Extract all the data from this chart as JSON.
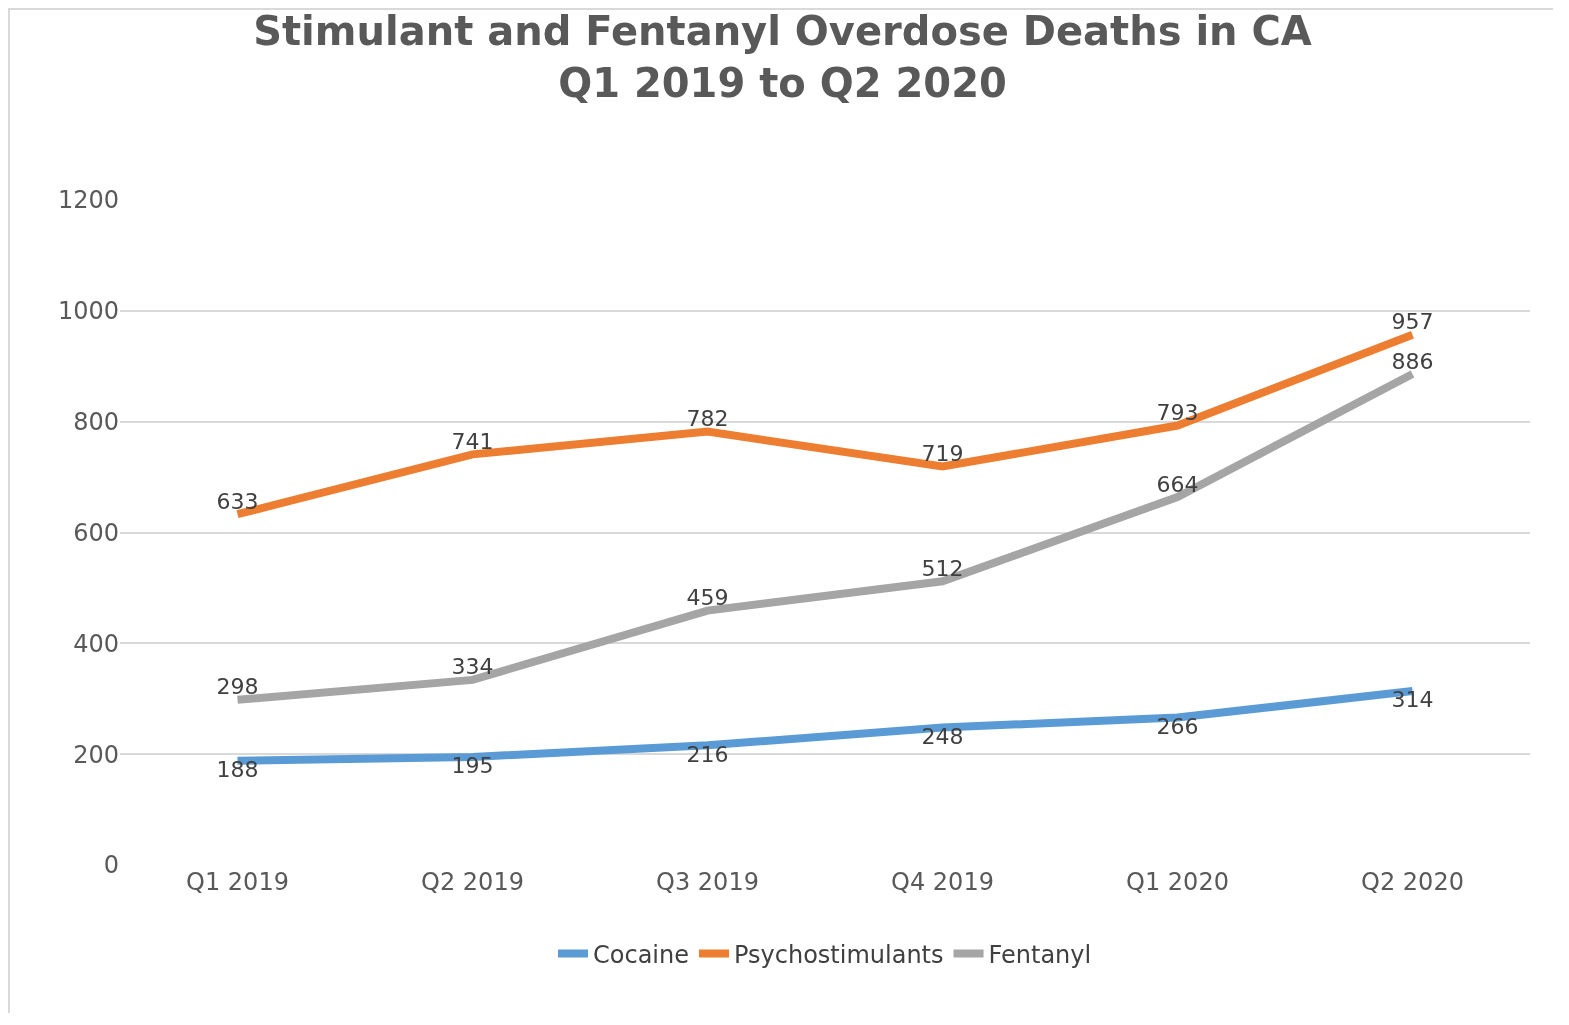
{
  "chart_data": {
    "type": "line",
    "title": "Stimulant and Fentanyl Overdose Deaths in CA\nQ1 2019 to Q2 2020",
    "categories": [
      "Q1 2019",
      "Q2 2019",
      "Q3 2019",
      "Q4 2019",
      "Q1 2020",
      "Q2 2020"
    ],
    "series": [
      {
        "name": "Cocaine",
        "color": "#5b9bd5",
        "values": [
          188,
          195,
          216,
          248,
          266,
          314
        ]
      },
      {
        "name": "Psychostimulants",
        "color": "#ed7d31",
        "values": [
          633,
          741,
          782,
          719,
          793,
          957
        ]
      },
      {
        "name": "Fentanyl",
        "color": "#a5a5a5",
        "values": [
          298,
          334,
          459,
          512,
          664,
          886
        ]
      }
    ],
    "ylim": [
      0,
      1200
    ],
    "yticks": [
      0,
      200,
      400,
      600,
      800,
      1000,
      1200
    ],
    "grid": "y",
    "legend": "bottom",
    "marker": "none",
    "line_style": "solid",
    "data_labels": true
  }
}
